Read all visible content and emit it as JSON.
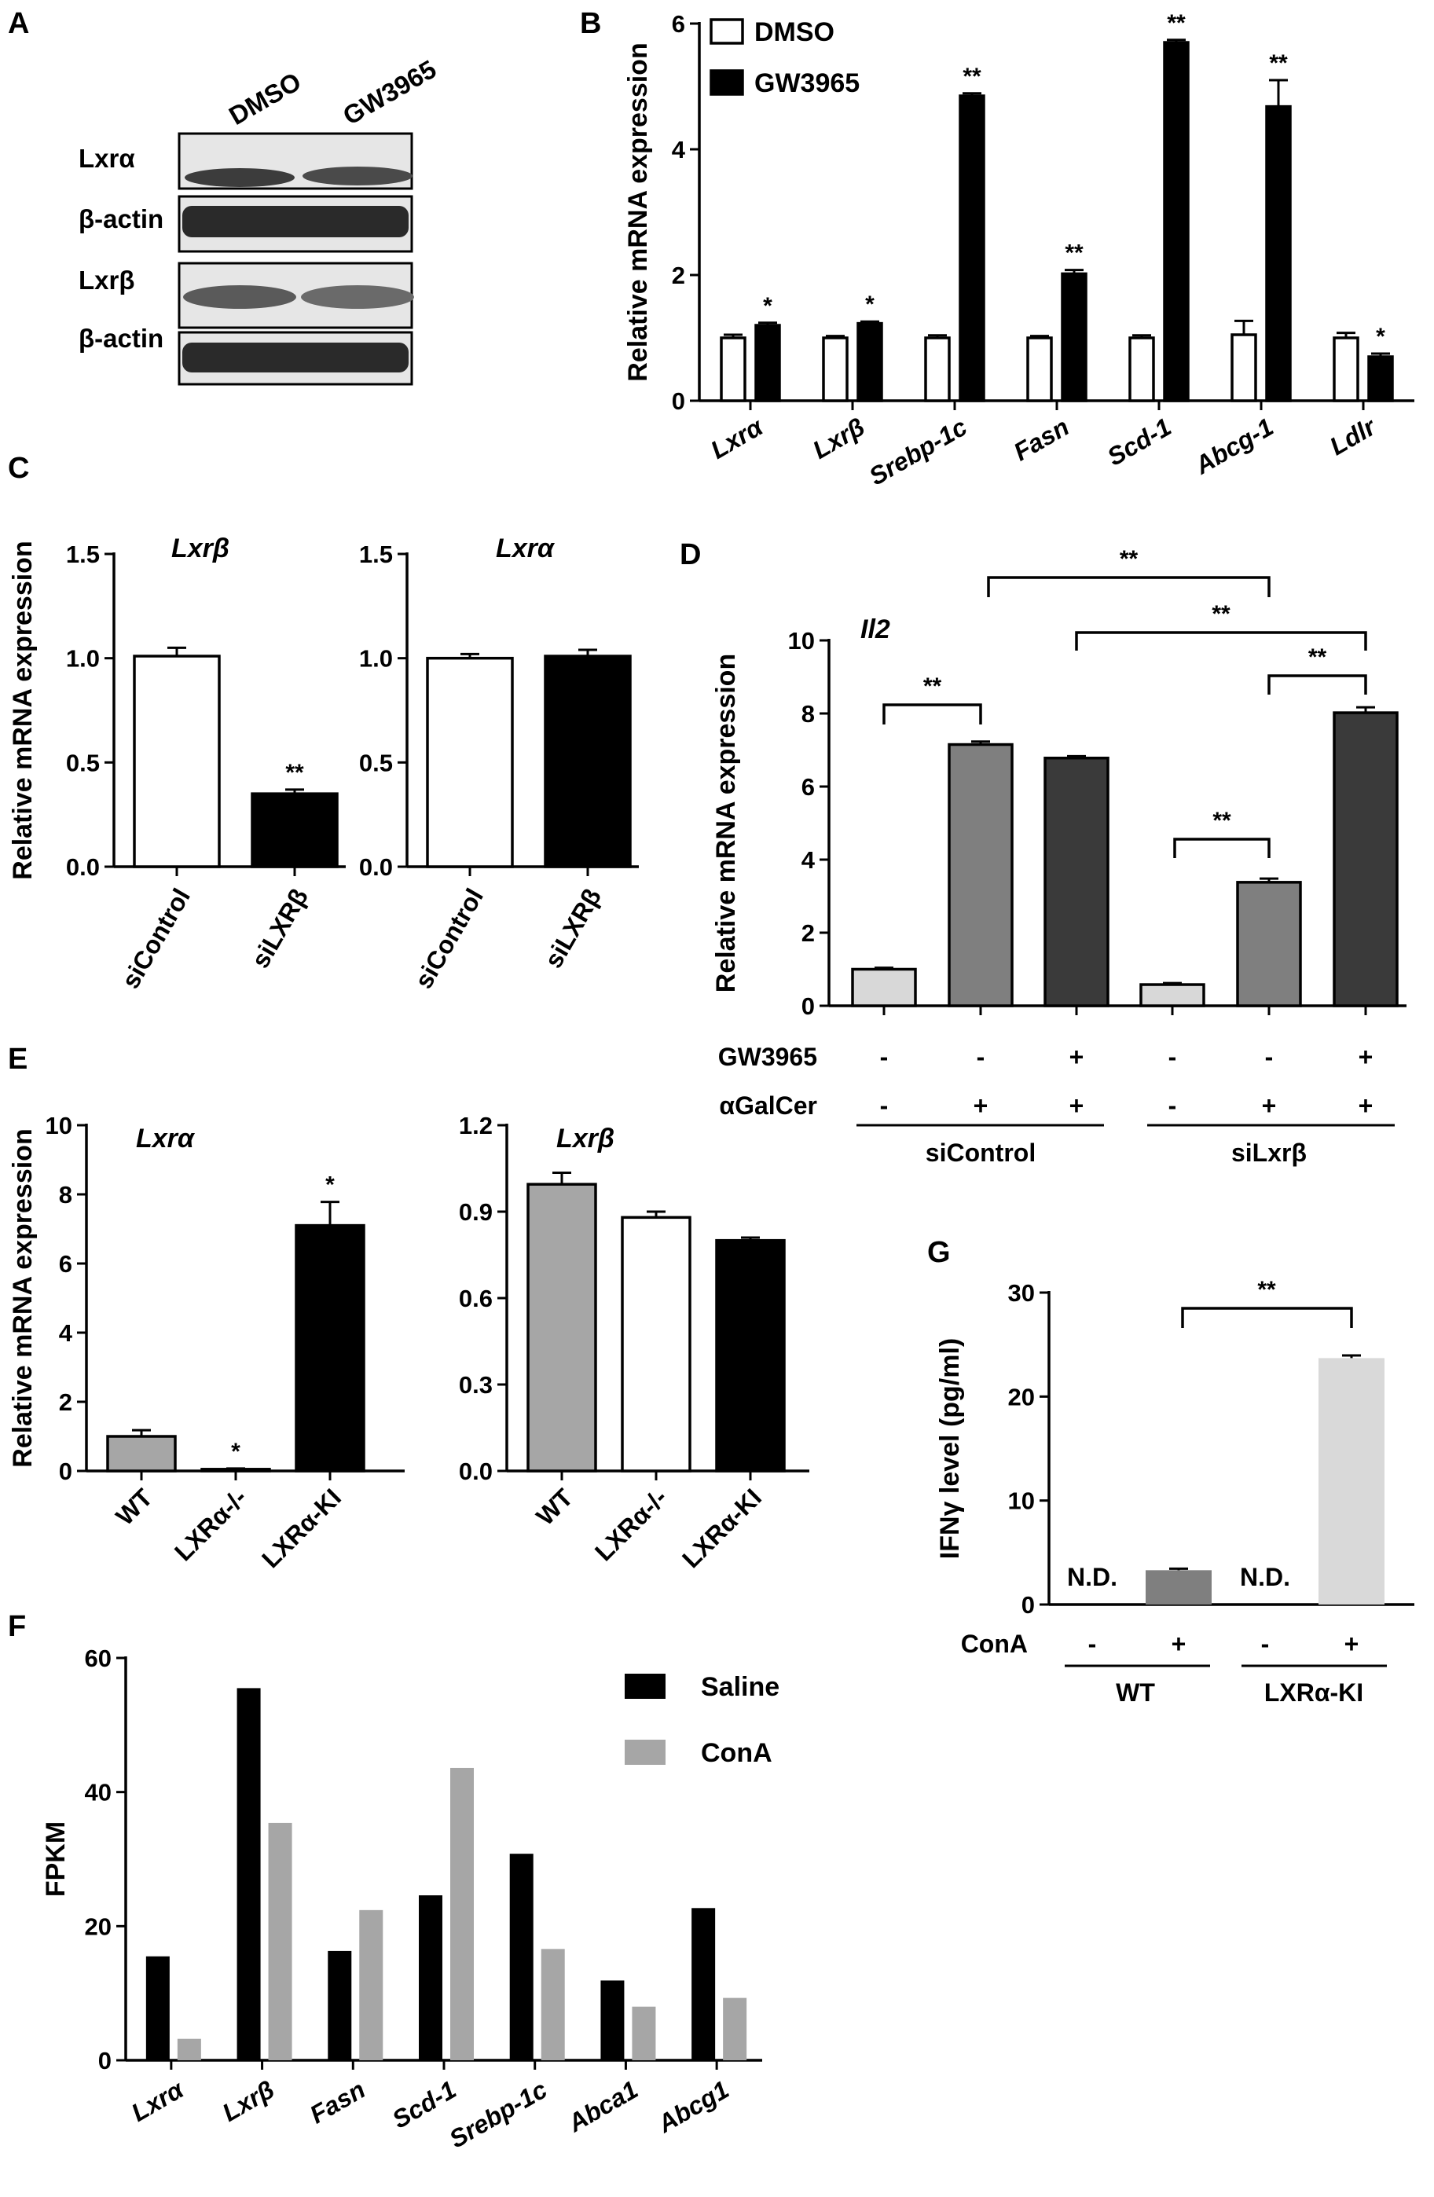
{
  "panels": {
    "A": {
      "label": "A",
      "lanes": [
        "DMSO",
        "GW3965"
      ],
      "rows": [
        "Lxrα",
        "β-actin",
        "Lxrβ",
        "β-actin"
      ]
    },
    "D_rows": {
      "GW3965": {
        "label": "GW3965",
        "values": [
          "-",
          "-",
          "+",
          "-",
          "-",
          "+"
        ]
      },
      "aGalCer": {
        "label": "αGalCer",
        "values": [
          "-",
          "+",
          "+",
          "-",
          "+",
          "+"
        ]
      },
      "groups": [
        "siControl",
        "siLxrβ"
      ]
    },
    "G_rows": {
      "ConA": {
        "label": "ConA",
        "values": [
          "-",
          "+",
          "-",
          "+"
        ]
      },
      "groups": [
        "WT",
        "LXRα-KI"
      ]
    }
  },
  "colors": {
    "black": "#000000",
    "white": "#ffffff",
    "grey": "#a6a6a6",
    "mid_grey": "#7f7f7f",
    "dark_grey": "#3a3a3a",
    "light_grey": "#d8d8d8",
    "conA_grey": "#a6a6a6",
    "ifng_light": "#d9d9d9",
    "blot_bg": "#e6e6e6"
  },
  "chart_data": [
    {
      "id": "B",
      "panel_label": "B",
      "type": "bar",
      "ylabel": "Relative mRNA expression",
      "ylim": [
        0,
        6
      ],
      "yticks": [
        "0",
        "2",
        "4",
        "6"
      ],
      "categories": [
        "Lxrα",
        "Lxrβ",
        "Srebp-1c",
        "Fasn",
        "Scd-1",
        "Abcg-1",
        "Ldlr"
      ],
      "series": [
        {
          "name": "DMSO",
          "values": [
            1.0,
            1.0,
            1.0,
            1.0,
            1.0,
            1.05,
            1.0
          ],
          "errors": [
            0.05,
            0.03,
            0.04,
            0.03,
            0.04,
            0.22,
            0.08
          ]
        },
        {
          "name": "GW3965",
          "values": [
            1.2,
            1.23,
            4.85,
            2.02,
            5.7,
            4.68,
            0.7
          ],
          "errors": [
            0.04,
            0.03,
            0.04,
            0.06,
            0.04,
            0.42,
            0.05
          ]
        }
      ],
      "significance": [
        "*",
        "*",
        "**",
        "**",
        "**",
        "**",
        "*"
      ],
      "legend": [
        "DMSO",
        "GW3965"
      ],
      "legend_position": "top-left"
    },
    {
      "id": "C1",
      "panel_label": "C",
      "type": "bar",
      "title": "Lxrβ",
      "ylabel": "Relative mRNA expression",
      "ylim": [
        0,
        1.5
      ],
      "yticks": [
        "0.0",
        "0.5",
        "1.0",
        "1.5"
      ],
      "categories": [
        "siControl",
        "siLXRβ"
      ],
      "values": [
        1.01,
        0.35
      ],
      "errors": [
        0.04,
        0.02
      ],
      "significance": [
        "",
        "**"
      ]
    },
    {
      "id": "C2",
      "type": "bar",
      "title": "Lxrα",
      "ylim": [
        0,
        1.5
      ],
      "yticks": [
        "0.0",
        "0.5",
        "1.0",
        "1.5"
      ],
      "categories": [
        "siControl",
        "siLXRβ"
      ],
      "values": [
        1.0,
        1.01
      ],
      "errors": [
        0.02,
        0.03
      ]
    },
    {
      "id": "D",
      "panel_label": "D",
      "type": "bar",
      "title": "Il2",
      "ylabel": "Relative mRNA expression",
      "ylim": [
        0,
        10
      ],
      "yticks": [
        "0",
        "2",
        "4",
        "6",
        "8",
        "10"
      ],
      "values": [
        1.0,
        7.15,
        6.78,
        0.58,
        3.38,
        8.02
      ],
      "errors": [
        0.04,
        0.08,
        0.05,
        0.04,
        0.1,
        0.15
      ],
      "comparisons": [
        "**",
        "**",
        "**",
        "**",
        "**"
      ]
    },
    {
      "id": "E1",
      "panel_label": "E",
      "type": "bar",
      "title": "Lxrα",
      "ylabel": "Relative mRNA expression",
      "ylim": [
        0,
        10
      ],
      "yticks": [
        "0",
        "2",
        "4",
        "6",
        "8",
        "10"
      ],
      "categories": [
        "WT",
        "LXRα-/-",
        "LXRα-KI"
      ],
      "values": [
        1.0,
        0.05,
        7.1
      ],
      "errors": [
        0.18,
        0.02,
        0.68
      ],
      "significance": [
        "",
        "*",
        "*"
      ]
    },
    {
      "id": "E2",
      "type": "bar",
      "title": "Lxrβ",
      "ylim": [
        0,
        1.2
      ],
      "yticks": [
        "0.0",
        "0.3",
        "0.6",
        "0.9",
        "1.2"
      ],
      "categories": [
        "WT",
        "LXRα-/-",
        "LXRα-KI"
      ],
      "values": [
        0.995,
        0.88,
        0.8
      ],
      "errors": [
        0.04,
        0.02,
        0.01
      ]
    },
    {
      "id": "F",
      "panel_label": "F",
      "type": "bar",
      "ylabel": "FPKM",
      "ylim": [
        0,
        60
      ],
      "yticks": [
        "0",
        "20",
        "40",
        "60"
      ],
      "categories": [
        "Lxrα",
        "Lxrβ",
        "Fasn",
        "Scd-1",
        "Srebp-1c",
        "Abca1",
        "Abcg1"
      ],
      "series": [
        {
          "name": "Saline",
          "values": [
            15.5,
            55.5,
            16.3,
            24.6,
            30.8,
            11.9,
            22.7
          ]
        },
        {
          "name": "ConA",
          "values": [
            3.2,
            35.4,
            22.4,
            43.6,
            16.6,
            8.0,
            9.3
          ]
        }
      ],
      "legend": [
        "Saline",
        "ConA"
      ],
      "legend_position": "top-right"
    },
    {
      "id": "G",
      "panel_label": "G",
      "type": "bar",
      "ylabel": "IFNγ level (pg/ml)",
      "ylim": [
        0,
        30
      ],
      "yticks": [
        "0",
        "10",
        "20",
        "30"
      ],
      "values": [
        0,
        3.3,
        0,
        23.7
      ],
      "errors": [
        0,
        0.15,
        0,
        0.25
      ],
      "annotations": [
        "N.D.",
        "",
        "N.D.",
        ""
      ],
      "comparisons": [
        "**"
      ]
    }
  ]
}
